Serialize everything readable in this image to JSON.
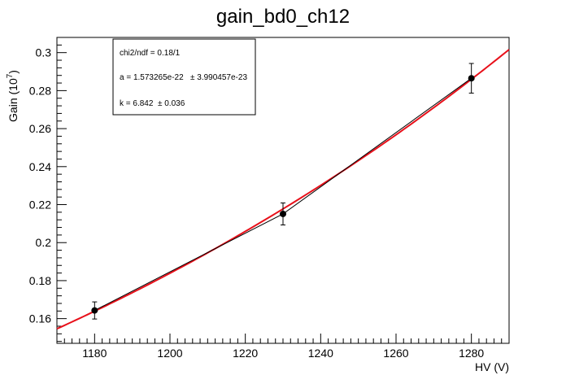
{
  "chart_data": {
    "type": "scatter",
    "title": "gain_bd0_ch12",
    "xlabel": "HV (V)",
    "ylabel_main": "Gain (10",
    "ylabel_exp": "7",
    "ylabel_close": ")",
    "xlim": [
      1170,
      1290
    ],
    "ylim": [
      0.147,
      0.308
    ],
    "x_ticks": [
      1180,
      1200,
      1220,
      1240,
      1260,
      1280
    ],
    "x_tick_labels": [
      "1180",
      "1200",
      "1220",
      "1240",
      "1260",
      "1280"
    ],
    "y_ticks": [
      0.16,
      0.18,
      0.2,
      0.22,
      0.24,
      0.26,
      0.28,
      0.3
    ],
    "y_tick_labels": [
      "0.16",
      "0.18",
      "0.2",
      "0.22",
      "0.24",
      "0.26",
      "0.28",
      "0.3"
    ],
    "grid": false,
    "series": [
      {
        "color": "#000000",
        "x": [
          1180,
          1230,
          1280
        ],
        "y": [
          0.1643,
          0.2151,
          0.2865
        ],
        "yerr": [
          0.0045,
          0.0058,
          0.0078
        ]
      }
    ],
    "fit": {
      "color": "#e8101a",
      "a": 1.573265e-22,
      "k": 6.842
    },
    "stats_box": {
      "position": "top-left",
      "lines": [
        "chi2/ndf = 0.18/1",
        "a = 1.573265e-22   ± 3.990457e-23",
        "k = 6.842  ± 0.036"
      ]
    }
  }
}
